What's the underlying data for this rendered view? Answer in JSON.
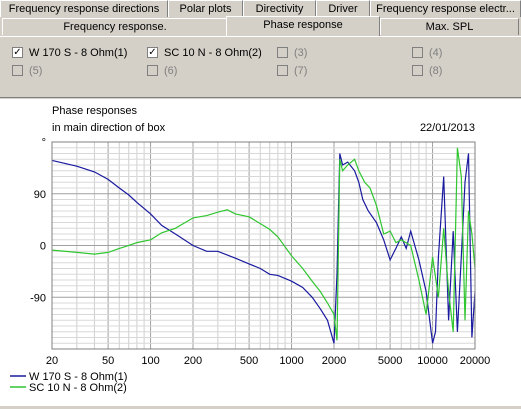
{
  "tabs_top": [
    {
      "label": "Frequency response directions"
    },
    {
      "label": "Polar plots"
    },
    {
      "label": "Directivity"
    },
    {
      "label": "Driver"
    },
    {
      "label": "Frequency response electr..."
    }
  ],
  "tabs_bottom": [
    {
      "label": "Frequency response."
    },
    {
      "label": "Phase response"
    },
    {
      "label": "Max. SPL"
    }
  ],
  "curves": [
    {
      "label": "W 170 S - 8 Ohm(1)",
      "checked": true
    },
    {
      "label": "SC 10 N - 8 Ohm(2)",
      "checked": true
    },
    {
      "label": "(3)",
      "checked": false
    },
    {
      "label": "(4)",
      "checked": false
    },
    {
      "label": "(5)",
      "checked": false
    },
    {
      "label": "(6)",
      "checked": false
    },
    {
      "label": "(7)",
      "checked": false
    },
    {
      "label": "(8)",
      "checked": false
    }
  ],
  "check_glyph": "✓",
  "chart": {
    "title_line1": "Phase responses",
    "title_line2": "in main direction of box",
    "date": "22/01/2013"
  },
  "chart_data": {
    "type": "line",
    "title": "Phase responses in main direction of box",
    "xscale": "log",
    "xlim": [
      20,
      20000
    ],
    "ylim": [
      -180,
      180
    ],
    "xticks": [
      20,
      50,
      100,
      200,
      500,
      1000,
      2000,
      5000,
      10000,
      20000
    ],
    "xtick_labels": [
      "20",
      "50",
      "100",
      "200",
      "500",
      "1000",
      "2000",
      "5000",
      "10000",
      "20000"
    ],
    "yticks": [
      180,
      90,
      0,
      -90
    ],
    "ytick_labels": [
      "°",
      "90",
      "0",
      "-90"
    ],
    "grid": true,
    "legend_position": "bottom-left",
    "series": [
      {
        "name": "W 170 S - 8 Ohm(1)",
        "color": "#1a1aa0",
        "x": [
          20,
          30,
          40,
          50,
          60,
          70,
          80,
          100,
          120,
          150,
          200,
          250,
          300,
          400,
          500,
          600,
          700,
          800,
          1000,
          1200,
          1400,
          1600,
          1800,
          2000,
          2100,
          2200,
          2300,
          2500,
          2800,
          3000,
          3200,
          3500,
          4000,
          4500,
          5000,
          5500,
          6000,
          6500,
          7000,
          8000,
          9000,
          10000,
          10500,
          11000,
          12000,
          13000,
          14000,
          15000,
          16000,
          17000,
          18000,
          19000,
          20000
        ],
        "y": [
          148,
          138,
          128,
          115,
          100,
          88,
          75,
          55,
          35,
          20,
          0,
          -10,
          -10,
          -22,
          -32,
          -40,
          -50,
          -52,
          -62,
          -73,
          -90,
          -110,
          -130,
          -170,
          -50,
          160,
          140,
          145,
          130,
          110,
          80,
          60,
          40,
          10,
          -25,
          -5,
          15,
          -5,
          25,
          -25,
          -80,
          -170,
          -150,
          -20,
          120,
          -130,
          25,
          -150,
          -20,
          110,
          160,
          -160,
          -80
        ]
      },
      {
        "name": "SC 10 N - 8 Ohm(2)",
        "color": "#2fc62f",
        "x": [
          20,
          30,
          40,
          50,
          60,
          70,
          80,
          100,
          120,
          150,
          200,
          250,
          300,
          350,
          400,
          500,
          600,
          700,
          800,
          1000,
          1200,
          1400,
          1600,
          1800,
          2000,
          2100,
          2200,
          2300,
          2500,
          2800,
          3000,
          3300,
          3600,
          4000,
          4500,
          5000,
          5500,
          6000,
          7000,
          8000,
          9000,
          10000,
          11000,
          12000,
          13000,
          14000,
          15000,
          16000,
          17000,
          18000,
          19000,
          20000
        ],
        "y": [
          -8,
          -12,
          -15,
          -12,
          -5,
          0,
          5,
          10,
          22,
          30,
          48,
          52,
          58,
          62,
          55,
          50,
          38,
          28,
          15,
          -18,
          -40,
          -62,
          -80,
          -100,
          -120,
          -165,
          150,
          130,
          140,
          150,
          130,
          110,
          100,
          70,
          20,
          25,
          5,
          10,
          0,
          -60,
          -120,
          -20,
          -90,
          30,
          -80,
          -150,
          170,
          120,
          -130,
          60,
          20,
          -40
        ]
      }
    ]
  }
}
